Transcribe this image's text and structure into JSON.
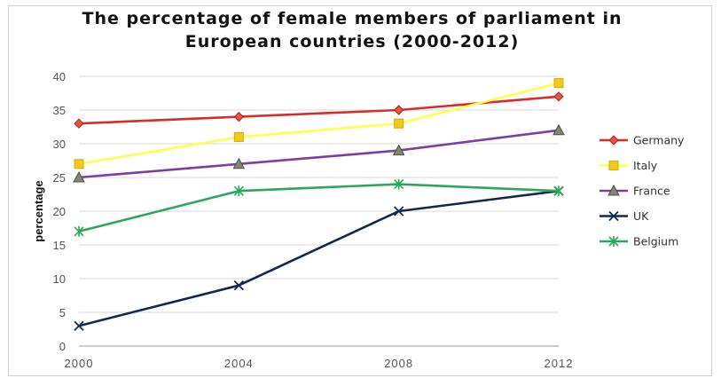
{
  "chart_data": {
    "type": "line",
    "title_line1": "The percentage of female members of parliament in",
    "title_line2": "European countries (2000-2012)",
    "xlabel": "",
    "ylabel": "percentage",
    "x": [
      "2000",
      "2004",
      "2008",
      "2012"
    ],
    "ylim": [
      0,
      40
    ],
    "yticks": [
      0,
      5,
      10,
      15,
      20,
      25,
      30,
      35,
      40
    ],
    "grid": true,
    "legend_position": "right",
    "series": [
      {
        "name": "Germany",
        "values": [
          33,
          34,
          35,
          37
        ],
        "color": "#d92b2b",
        "marker": "diamond"
      },
      {
        "name": "Italy",
        "values": [
          27,
          31,
          33,
          39
        ],
        "color": "#ffff4d",
        "marker": "square"
      },
      {
        "name": "France",
        "values": [
          25,
          27,
          29,
          32
        ],
        "color": "#7b3fa0",
        "marker": "triangle"
      },
      {
        "name": "UK",
        "values": [
          3,
          9,
          20,
          23
        ],
        "color": "#13294b",
        "marker": "x"
      },
      {
        "name": "Belgium",
        "values": [
          17,
          23,
          24,
          23
        ],
        "color": "#2aa85a",
        "marker": "star"
      }
    ]
  }
}
